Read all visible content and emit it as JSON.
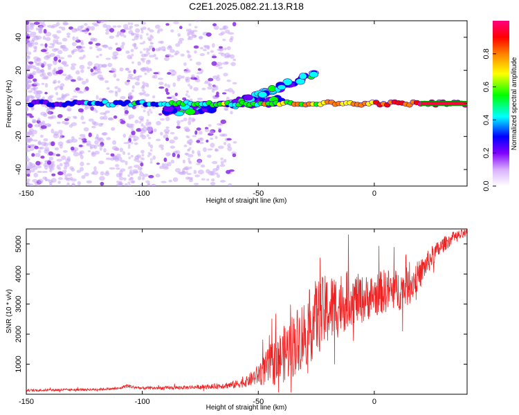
{
  "title": "C2E1.2025.082.21.13.R18",
  "chart_data": [
    {
      "type": "heatmap",
      "name": "spectrogram",
      "xlabel": "Height of straight line (km)",
      "ylabel": "Frequency (Hz)",
      "xlim": [
        -150,
        40
      ],
      "ylim": [
        -50,
        50
      ],
      "xticks": [
        -150,
        -100,
        -50,
        0
      ],
      "yticks": [
        -40,
        -20,
        0,
        20,
        40
      ],
      "colorbar": {
        "label": "Normalized spectral amplitude",
        "range": [
          0,
          1
        ],
        "ticks": [
          "0.0",
          "0.2",
          "0.4",
          "0.6",
          "0.8"
        ],
        "colors": [
          "#ffffff",
          "#c080ff",
          "#7000ff",
          "#0000ff",
          "#00ffff",
          "#00ff00",
          "#ffff00",
          "#ff8000",
          "#ff0000",
          "#ff0080"
        ]
      },
      "features": {
        "main_line": {
          "frequency_hz": 0,
          "x_from": -148,
          "x_to": 40
        },
        "upper_branch": {
          "start": [
            -60,
            0
          ],
          "end": [
            -25,
            18
          ]
        },
        "lower_branch": {
          "start": [
            -90,
            -5
          ],
          "end": [
            -40,
            2
          ]
        }
      }
    },
    {
      "type": "line",
      "name": "snr",
      "xlabel": "Height of straight line (km)",
      "ylabel": "SNR (10 * v/v)",
      "xlim": [
        -150,
        40
      ],
      "ylim": [
        0,
        5500
      ],
      "xticks": [
        -150,
        -100,
        -50,
        0
      ],
      "yticks": [
        1000,
        2000,
        3000,
        4000,
        5000
      ],
      "color": "#ee2222",
      "series": [
        {
          "name": "SNR",
          "x": [
            -150,
            -140,
            -130,
            -120,
            -110,
            -107,
            -100,
            -90,
            -80,
            -70,
            -60,
            -55,
            -50,
            -45,
            -40,
            -35,
            -30,
            -25,
            -20,
            -15,
            -10,
            -5,
            0,
            5,
            10,
            15,
            20,
            25,
            30,
            35,
            40
          ],
          "y": [
            130,
            140,
            150,
            160,
            190,
            280,
            200,
            210,
            230,
            260,
            320,
            420,
            650,
            950,
            1250,
            1650,
            2050,
            2550,
            2800,
            3000,
            3200,
            3150,
            3300,
            3450,
            3450,
            3600,
            4050,
            4600,
            5000,
            5250,
            5350
          ],
          "amplitude": [
            40,
            40,
            40,
            40,
            40,
            60,
            50,
            60,
            60,
            80,
            130,
            180,
            350,
            700,
            900,
            1100,
            1200,
            1300,
            1200,
            1100,
            900,
            800,
            700,
            750,
            700,
            650,
            450,
            350,
            250,
            200,
            150
          ]
        }
      ]
    }
  ]
}
